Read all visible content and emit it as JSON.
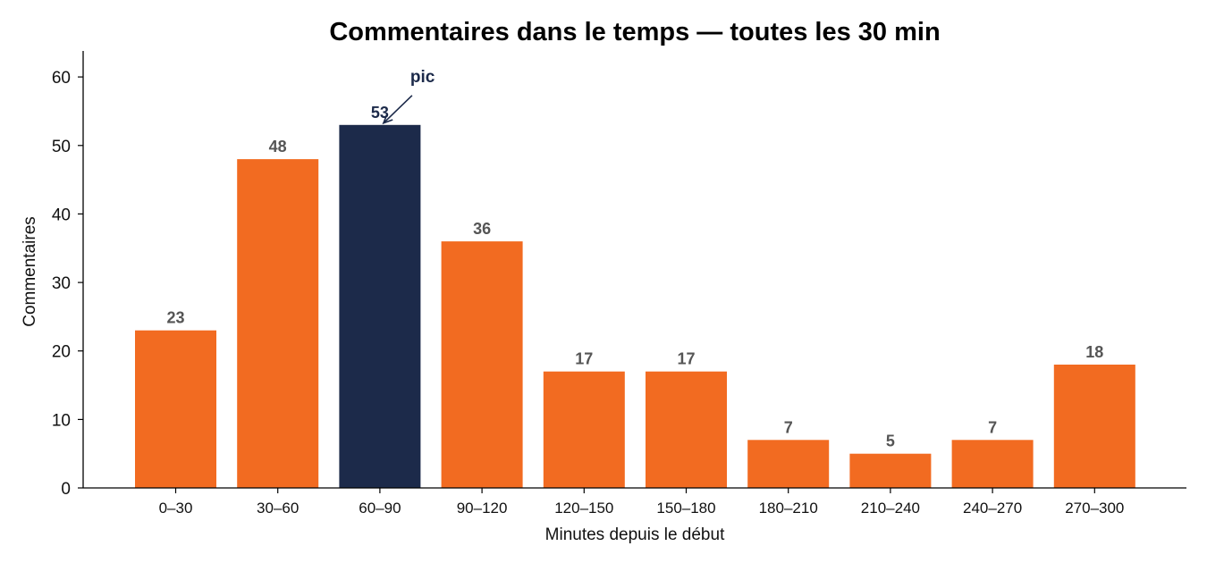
{
  "colors": {
    "bar": "#f26b21",
    "highlight": "#1c2a4a",
    "value_label": "#555555",
    "axis": "#000000"
  },
  "chart_data": {
    "type": "bar",
    "title": "Commentaires dans le temps — toutes les 30 min",
    "xlabel": "Minutes depuis le début",
    "ylabel": "Commentaires",
    "ylim": [
      0,
      63.8
    ],
    "yticks": [
      "0",
      "10",
      "20",
      "30",
      "40",
      "50",
      "60"
    ],
    "grid": false,
    "categories": [
      "0–30",
      "30–60",
      "60–90",
      "90–120",
      "120–150",
      "150–180",
      "180–210",
      "210–240",
      "240–270",
      "270–300"
    ],
    "values": [
      23,
      48,
      53,
      36,
      17,
      17,
      7,
      5,
      7,
      18
    ],
    "value_labels": [
      "23",
      "48",
      "53",
      "36",
      "17",
      "17",
      "7",
      "5",
      "7",
      "18"
    ],
    "highlight_index": 2,
    "annotation": {
      "text": "pic",
      "category": "60–90",
      "value": 53
    }
  }
}
